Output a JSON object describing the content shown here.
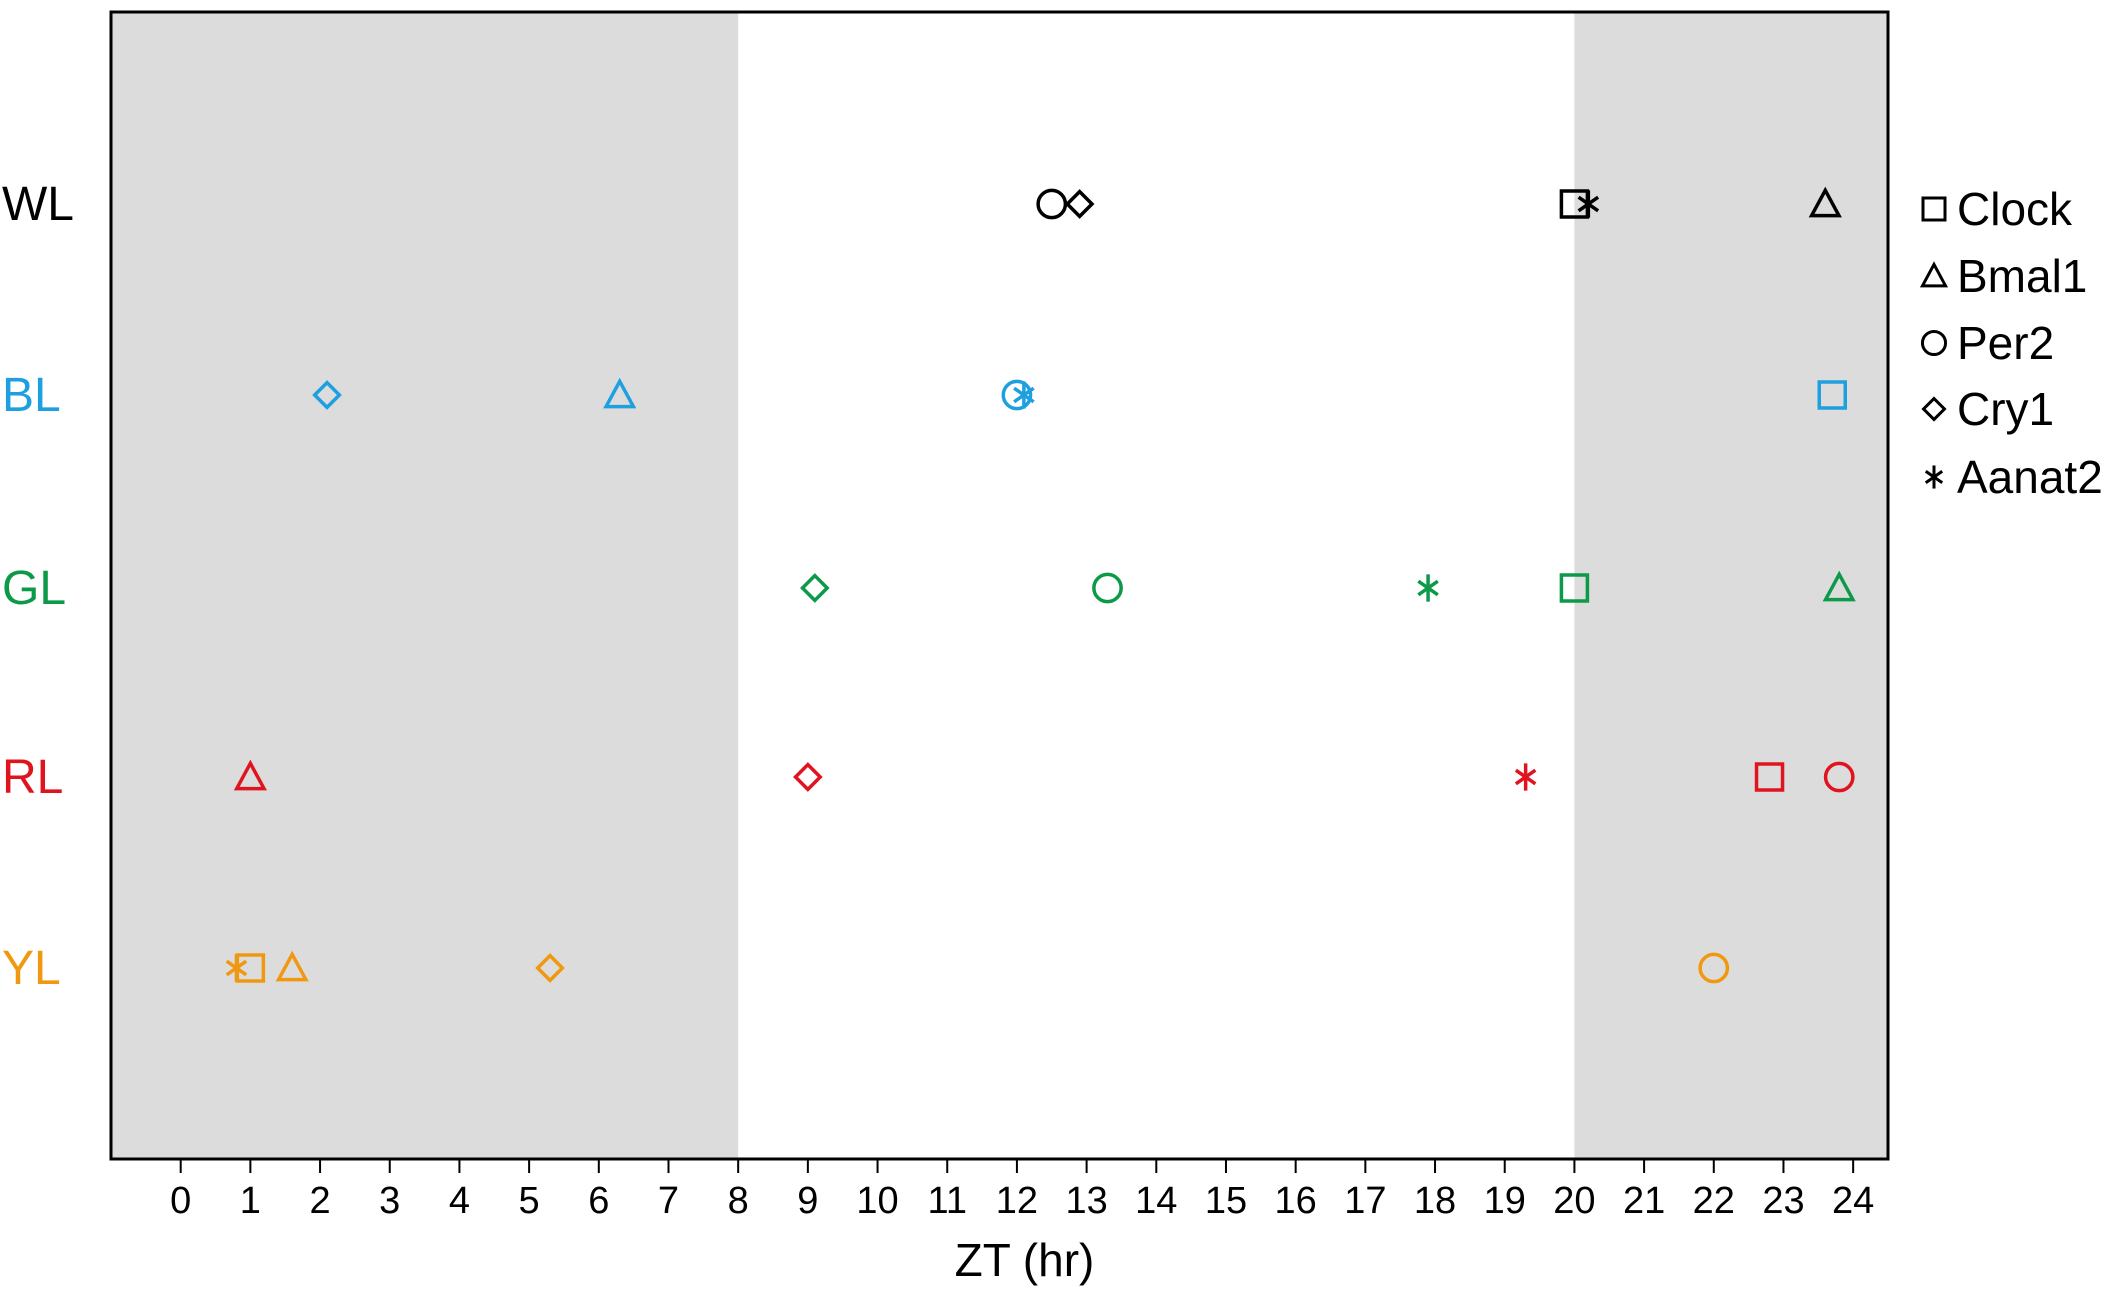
{
  "chart_data": {
    "type": "scatter",
    "title": "",
    "xlabel": "ZT (hr)",
    "ylabel": "",
    "xlim": [
      -1,
      24.5
    ],
    "x_ticks": [
      0,
      1,
      2,
      3,
      4,
      5,
      6,
      7,
      8,
      9,
      10,
      11,
      12,
      13,
      14,
      15,
      16,
      17,
      18,
      19,
      20,
      21,
      22,
      23,
      24
    ],
    "dark_periods": [
      [
        -1,
        8
      ],
      [
        20,
        24.5
      ]
    ],
    "shading_color": "#dcdcdc",
    "grid": false,
    "legend_position": "right",
    "rows": [
      {
        "label": "WL",
        "color": "#000000"
      },
      {
        "label": "BL",
        "color": "#1ea0e0"
      },
      {
        "label": "GL",
        "color": "#0d9a48"
      },
      {
        "label": "RL",
        "color": "#e0141e"
      },
      {
        "label": "YL",
        "color": "#f0980f"
      }
    ],
    "genes": [
      {
        "name": "Clock",
        "marker": "square"
      },
      {
        "name": "Bmal1",
        "marker": "triangle"
      },
      {
        "name": "Per2",
        "marker": "circle"
      },
      {
        "name": "Cry1",
        "marker": "diamond"
      },
      {
        "name": "Aanat2",
        "marker": "asterisk"
      }
    ],
    "points": [
      {
        "row": "WL",
        "gene": "Clock",
        "x": 20.0
      },
      {
        "row": "WL",
        "gene": "Bmal1",
        "x": 23.6
      },
      {
        "row": "WL",
        "gene": "Per2",
        "x": 12.5
      },
      {
        "row": "WL",
        "gene": "Cry1",
        "x": 12.9
      },
      {
        "row": "WL",
        "gene": "Aanat2",
        "x": 20.2
      },
      {
        "row": "BL",
        "gene": "Clock",
        "x": 23.7
      },
      {
        "row": "BL",
        "gene": "Bmal1",
        "x": 6.3
      },
      {
        "row": "BL",
        "gene": "Per2",
        "x": 12.0
      },
      {
        "row": "BL",
        "gene": "Cry1",
        "x": 2.1
      },
      {
        "row": "BL",
        "gene": "Aanat2",
        "x": 12.1
      },
      {
        "row": "GL",
        "gene": "Clock",
        "x": 20.0
      },
      {
        "row": "GL",
        "gene": "Bmal1",
        "x": 23.8
      },
      {
        "row": "GL",
        "gene": "Per2",
        "x": 13.3
      },
      {
        "row": "GL",
        "gene": "Cry1",
        "x": 9.1
      },
      {
        "row": "GL",
        "gene": "Aanat2",
        "x": 17.9
      },
      {
        "row": "RL",
        "gene": "Clock",
        "x": 22.8
      },
      {
        "row": "RL",
        "gene": "Bmal1",
        "x": 1.0
      },
      {
        "row": "RL",
        "gene": "Per2",
        "x": 23.8
      },
      {
        "row": "RL",
        "gene": "Cry1",
        "x": 9.0
      },
      {
        "row": "RL",
        "gene": "Aanat2",
        "x": 19.3
      },
      {
        "row": "YL",
        "gene": "Clock",
        "x": 1.0
      },
      {
        "row": "YL",
        "gene": "Bmal1",
        "x": 1.6
      },
      {
        "row": "YL",
        "gene": "Per2",
        "x": 22.0
      },
      {
        "row": "YL",
        "gene": "Cry1",
        "x": 5.3
      },
      {
        "row": "YL",
        "gene": "Aanat2",
        "x": 0.8
      }
    ]
  }
}
